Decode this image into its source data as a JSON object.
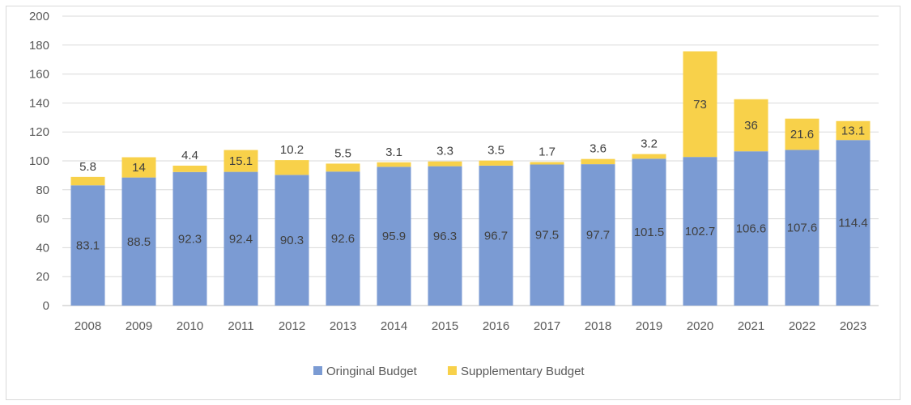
{
  "chart_data": {
    "type": "bar",
    "stacked": true,
    "title": "",
    "xlabel": "",
    "ylabel": "",
    "ylim": [
      0,
      200
    ],
    "yticks": [
      0,
      20,
      40,
      60,
      80,
      100,
      120,
      140,
      160,
      180,
      200
    ],
    "grid": true,
    "legend_position": "bottom",
    "categories": [
      "2008",
      "2009",
      "2010",
      "2011",
      "2012",
      "2013",
      "2014",
      "2015",
      "2016",
      "2017",
      "2018",
      "2019",
      "2020",
      "2021",
      "2022",
      "2023"
    ],
    "series": [
      {
        "name": "Oringinal Budget",
        "color": "#7b9bd3",
        "values": [
          83.1,
          88.5,
          92.3,
          92.4,
          90.3,
          92.6,
          95.9,
          96.3,
          96.7,
          97.5,
          97.7,
          101.5,
          102.7,
          106.6,
          107.6,
          114.4
        ],
        "labels": [
          "83.1",
          "88.5",
          "92.3",
          "92.4",
          "90.3",
          "92.6",
          "95.9",
          "96.3",
          "96.7",
          "97.5",
          "97.7",
          "101.5",
          "102.7",
          "106.6",
          "107.6",
          "114.4"
        ]
      },
      {
        "name": "Supplementary Budget",
        "color": "#f8d14a",
        "values": [
          5.8,
          14,
          4.4,
          15.1,
          10.2,
          5.5,
          3.1,
          3.3,
          3.5,
          1.7,
          3.6,
          3.2,
          73,
          36,
          21.6,
          13.1
        ],
        "labels": [
          "5.8",
          "14",
          "4.4",
          "15.1",
          "10.2",
          "5.5",
          "3.1",
          "3.3",
          "3.5",
          "1.7",
          "3.6",
          "3.2",
          "73",
          "36",
          "21.6",
          "13.1"
        ]
      }
    ]
  }
}
